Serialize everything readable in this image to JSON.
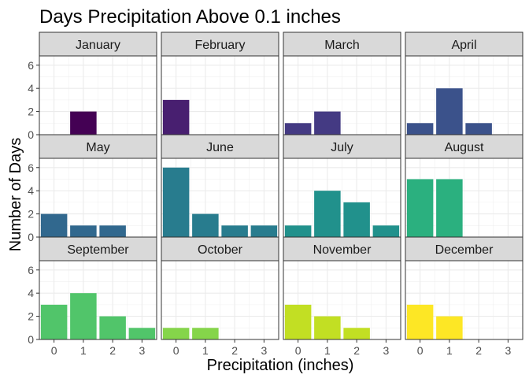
{
  "chart_data": {
    "type": "bar",
    "title": "Days Precipitation Above 0.1 inches",
    "xlabel": "Precipitation (inches)",
    "ylabel": "Number of Days",
    "x_ticks": [
      "0",
      "1",
      "2",
      "3"
    ],
    "y_ticks": [
      "0",
      "2",
      "4",
      "6"
    ],
    "xlim": [
      -0.5,
      3.5
    ],
    "ylim": [
      0,
      6.8
    ],
    "grid": true,
    "panels": [
      {
        "month": "January",
        "color": "#440154",
        "bars": [
          {
            "x": 1,
            "y": 2
          }
        ]
      },
      {
        "month": "February",
        "color": "#481F70",
        "bars": [
          {
            "x": 0,
            "y": 3
          }
        ]
      },
      {
        "month": "March",
        "color": "#443A83",
        "bars": [
          {
            "x": 0,
            "y": 1
          },
          {
            "x": 1,
            "y": 2
          }
        ]
      },
      {
        "month": "April",
        "color": "#3B528B",
        "bars": [
          {
            "x": 0,
            "y": 1
          },
          {
            "x": 1,
            "y": 4
          },
          {
            "x": 2,
            "y": 1
          }
        ]
      },
      {
        "month": "May",
        "color": "#31688E",
        "bars": [
          {
            "x": 0,
            "y": 2
          },
          {
            "x": 1,
            "y": 1
          },
          {
            "x": 2,
            "y": 1
          }
        ]
      },
      {
        "month": "June",
        "color": "#287C8E",
        "bars": [
          {
            "x": 0,
            "y": 6
          },
          {
            "x": 1,
            "y": 2
          },
          {
            "x": 2,
            "y": 1
          },
          {
            "x": 3,
            "y": 1
          }
        ]
      },
      {
        "month": "July",
        "color": "#21918C",
        "bars": [
          {
            "x": 0,
            "y": 1
          },
          {
            "x": 1,
            "y": 4
          },
          {
            "x": 2,
            "y": 3
          },
          {
            "x": 3,
            "y": 1
          }
        ]
      },
      {
        "month": "August",
        "color": "#2BB07F",
        "bars": [
          {
            "x": 0,
            "y": 5
          },
          {
            "x": 1,
            "y": 5
          }
        ]
      },
      {
        "month": "September",
        "color": "#51C56A",
        "bars": [
          {
            "x": 0,
            "y": 3
          },
          {
            "x": 1,
            "y": 4
          },
          {
            "x": 2,
            "y": 2
          },
          {
            "x": 3,
            "y": 1
          }
        ]
      },
      {
        "month": "October",
        "color": "#85D54A",
        "bars": [
          {
            "x": 0,
            "y": 1
          },
          {
            "x": 1,
            "y": 1
          }
        ]
      },
      {
        "month": "November",
        "color": "#C2DF23",
        "bars": [
          {
            "x": 0,
            "y": 3
          },
          {
            "x": 1,
            "y": 2
          },
          {
            "x": 2,
            "y": 1
          }
        ]
      },
      {
        "month": "December",
        "color": "#FDE725",
        "bars": [
          {
            "x": 0,
            "y": 3
          },
          {
            "x": 1,
            "y": 2
          }
        ]
      }
    ]
  }
}
